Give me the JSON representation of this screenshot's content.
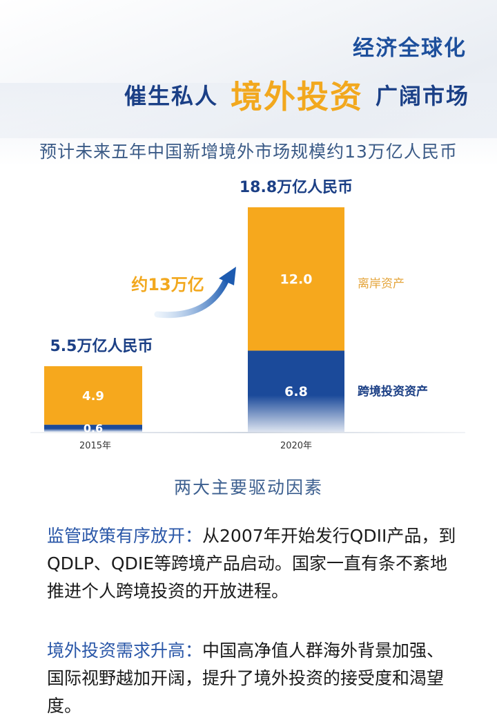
{
  "header": {
    "line1": "经济全球化",
    "line2_left": "催生私人",
    "line2_highlight": "境外投资",
    "line2_right": "广阔市场",
    "subtitle": "预计未来五年中国新增境外市场规模约13万亿人民币"
  },
  "chart_data": {
    "type": "bar",
    "stacked": true,
    "categories": [
      "2015年",
      "2020年"
    ],
    "series": [
      {
        "name": "跨境投资资产",
        "values": [
          0.6,
          6.8
        ],
        "color": "#1b4a9a"
      },
      {
        "name": "离岸资产",
        "values": [
          4.9,
          12.0
        ],
        "color": "#f6a81d"
      }
    ],
    "value_labels": [
      [
        "0.6",
        "6.8"
      ],
      [
        "4.9",
        "12.0"
      ]
    ],
    "totals_labels": [
      "5.5万亿人民币",
      "18.8万亿人民币"
    ],
    "growth_label": "约13万亿",
    "ylim": [
      0,
      18.8
    ],
    "legend": "right of bars"
  },
  "section": {
    "title": "两大主要驱动因素",
    "p1_lead": "监管政策有序放开：",
    "p1_text": "从2007年开始发行QDII产品，到QDLP、QDIE等跨境产品启动。国家一直有条不紊地推进个人跨境投资的开放进程。",
    "p2_lead": "境外投资需求升高：",
    "p2_text": "中国高净值人群海外背景加强、国际视野越加开阔，提升了境外投资的接受度和渴望度。"
  }
}
